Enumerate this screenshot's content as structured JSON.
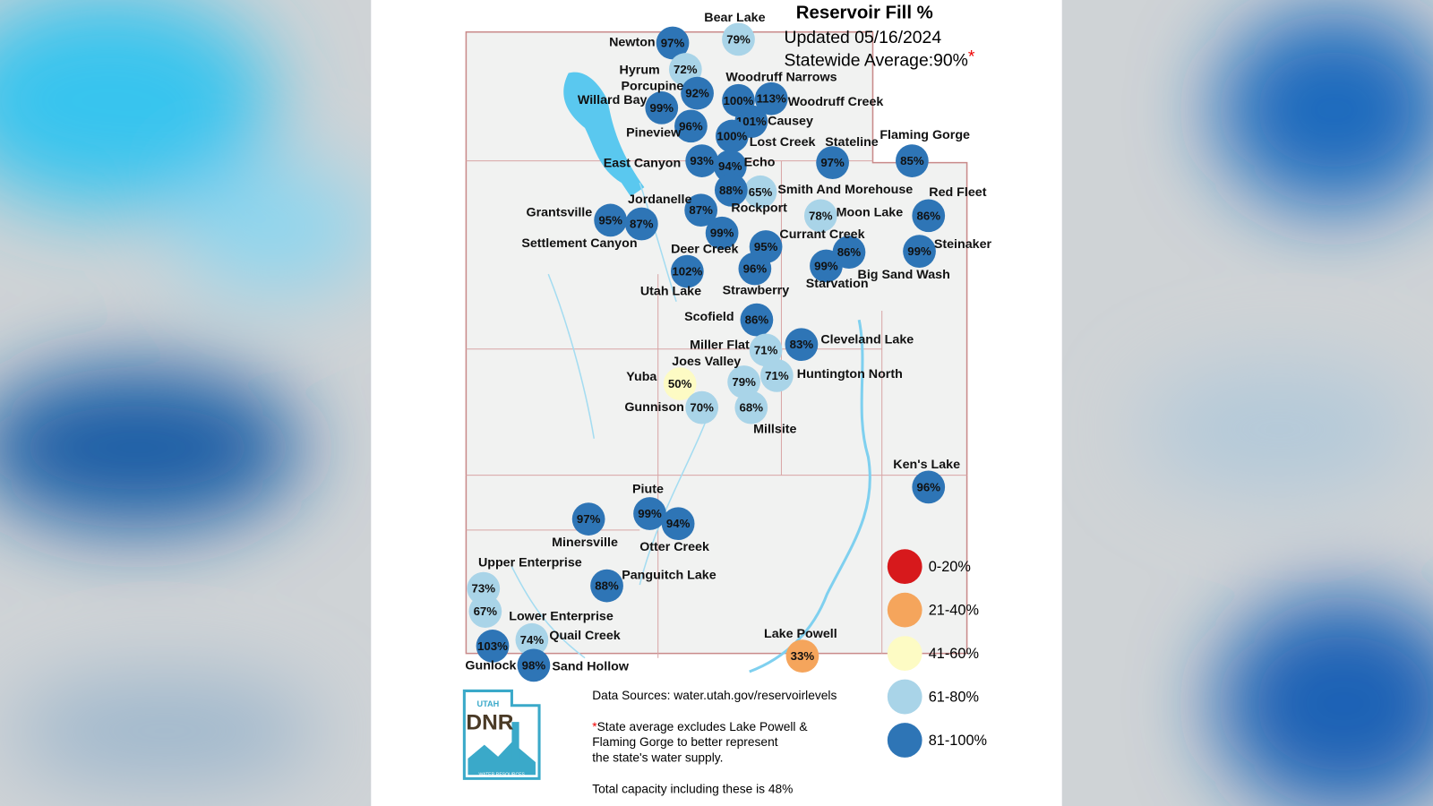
{
  "header": {
    "title": "Reservoir Fill %",
    "updated": "Updated 05/16/2024",
    "statewide_average": "Statewide Average:90%",
    "asterisk": "*"
  },
  "reservoirs": [
    {
      "name": "Newton",
      "fill": "97%",
      "color": "#2e75b6"
    },
    {
      "name": "Bear Lake",
      "fill": "79%",
      "color": "#a9d4e8"
    },
    {
      "name": "Hyrum",
      "fill": "72%",
      "color": "#a9d4e8"
    },
    {
      "name": "Porcupine",
      "fill": "92%",
      "color": "#2e75b6"
    },
    {
      "name": "Woodruff Narrows",
      "fill": "100%",
      "color": "#2e75b6"
    },
    {
      "name": "Woodruff Creek",
      "fill": "113%",
      "color": "#2e75b6"
    },
    {
      "name": "Willard Bay",
      "fill": "99%",
      "color": "#2e75b6"
    },
    {
      "name": "Pineview",
      "fill": "96%",
      "color": "#2e75b6"
    },
    {
      "name": "Causey",
      "fill": "101%",
      "color": "#2e75b6"
    },
    {
      "name": "Lost Creek",
      "fill": "100%",
      "color": "#2e75b6"
    },
    {
      "name": "Stateline",
      "fill": "97%",
      "color": "#2e75b6"
    },
    {
      "name": "Flaming Gorge",
      "fill": "85%",
      "color": "#2e75b6"
    },
    {
      "name": "East Canyon",
      "fill": "93%",
      "color": "#2e75b6"
    },
    {
      "name": "Echo",
      "fill": "94%",
      "color": "#2e75b6"
    },
    {
      "name": "Smith And Morehouse",
      "fill": "65%",
      "color": "#a9d4e8"
    },
    {
      "name": "Red Fleet",
      "fill": "86%",
      "color": "#2e75b6"
    },
    {
      "name": "Moon Lake",
      "fill": "78%",
      "color": "#a9d4e8"
    },
    {
      "name": "Jordanelle",
      "fill": "88%",
      "color": "#2e75b6"
    },
    {
      "name": "Rockport",
      "fill": "87%",
      "color": "#2e75b6"
    },
    {
      "name": "Grantsville",
      "fill": "95%",
      "color": "#2e75b6"
    },
    {
      "name": "Settlement Canyon",
      "fill": "87%",
      "color": "#2e75b6"
    },
    {
      "name": "Deer Creek",
      "fill": "99%",
      "color": "#2e75b6"
    },
    {
      "name": "Currant Creek",
      "fill": "95%",
      "color": "#2e75b6"
    },
    {
      "name": "Big Sand Wash",
      "fill": "86%",
      "color": "#2e75b6"
    },
    {
      "name": "Starvation",
      "fill": "99%",
      "color": "#2e75b6"
    },
    {
      "name": "Steinaker",
      "fill": "99%",
      "color": "#2e75b6"
    },
    {
      "name": "Utah Lake",
      "fill": "102%",
      "color": "#2e75b6"
    },
    {
      "name": "Strawberry",
      "fill": "96%",
      "color": "#2e75b6"
    },
    {
      "name": "Scofield",
      "fill": "86%",
      "color": "#2e75b6"
    },
    {
      "name": "Miller Flat",
      "fill": "71%",
      "color": "#a9d4e8"
    },
    {
      "name": "Cleveland Lake",
      "fill": "83%",
      "color": "#2e75b6"
    },
    {
      "name": "Joes Valley",
      "fill": "79%",
      "color": "#a9d4e8"
    },
    {
      "name": "Huntington North",
      "fill": "71%",
      "color": "#a9d4e8"
    },
    {
      "name": "Yuba",
      "fill": "50%",
      "color": "#fdfbc4"
    },
    {
      "name": "Gunnison",
      "fill": "70%",
      "color": "#a9d4e8"
    },
    {
      "name": "Millsite",
      "fill": "68%",
      "color": "#a9d4e8"
    },
    {
      "name": "Ken's Lake",
      "fill": "96%",
      "color": "#2e75b6"
    },
    {
      "name": "Piute",
      "fill": "99%",
      "color": "#2e75b6"
    },
    {
      "name": "Otter Creek",
      "fill": "94%",
      "color": "#2e75b6"
    },
    {
      "name": "Minersville",
      "fill": "97%",
      "color": "#2e75b6"
    },
    {
      "name": "Upper Enterprise",
      "fill": "73%",
      "color": "#a9d4e8"
    },
    {
      "name": "Panguitch Lake",
      "fill": "88%",
      "color": "#2e75b6"
    },
    {
      "name": "Lower Enterprise",
      "fill": "67%",
      "color": "#a9d4e8"
    },
    {
      "name": "Quail Creek",
      "fill": "74%",
      "color": "#a9d4e8"
    },
    {
      "name": "Gunlock",
      "fill": "103%",
      "color": "#2e75b6"
    },
    {
      "name": "Sand Hollow",
      "fill": "98%",
      "color": "#2e75b6"
    },
    {
      "name": "Lake Powell",
      "fill": "33%",
      "color": "#f5a55c"
    }
  ],
  "legend": [
    {
      "label": "0-20%",
      "color": "#d7191c"
    },
    {
      "label": "21-40%",
      "color": "#f5a55c"
    },
    {
      "label": "41-60%",
      "color": "#fdfbc4"
    },
    {
      "label": "61-80%",
      "color": "#a9d4e8"
    },
    {
      "label": "81-100%",
      "color": "#2e75b6"
    }
  ],
  "notes": {
    "sources": "Data Sources: water.utah.gov/reservoirlevels",
    "footnote_lines": [
      "State average excludes Lake Powell &",
      "Flaming Gorge to better represent",
      "the state's water supply."
    ],
    "total": "Total capacity including these is 48%"
  },
  "logo": {
    "top": "UTAH",
    "main": "DNR",
    "bottom": "WATER RESOURCES"
  }
}
